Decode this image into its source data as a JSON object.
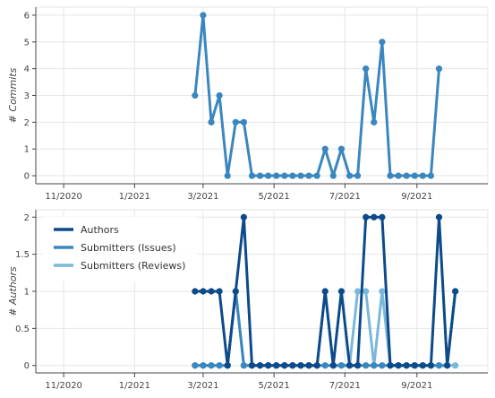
{
  "chart_data": [
    {
      "type": "line",
      "ylabel": "# Commits",
      "ylim": [
        -0.3,
        6.3
      ],
      "yticks": [
        "0",
        "1",
        "2",
        "3",
        "4",
        "5",
        "6"
      ],
      "xticks": [
        "11/2020",
        "1/2021",
        "3/2021",
        "5/2021",
        "7/2021",
        "9/2021"
      ],
      "grid": true,
      "series": [
        {
          "color": "#3a87bf",
          "points": [
            [
              "2021-02-22",
              3
            ],
            [
              "2021-03-01",
              6
            ],
            [
              "2021-03-08",
              2
            ],
            [
              "2021-03-15",
              3
            ],
            [
              "2021-03-22",
              0
            ],
            [
              "2021-03-29",
              2
            ],
            [
              "2021-04-05",
              2
            ],
            [
              "2021-04-12",
              0
            ],
            [
              "2021-04-19",
              0
            ],
            [
              "2021-04-26",
              0
            ],
            [
              "2021-05-03",
              0
            ],
            [
              "2021-05-10",
              0
            ],
            [
              "2021-05-17",
              0
            ],
            [
              "2021-05-24",
              0
            ],
            [
              "2021-05-31",
              0
            ],
            [
              "2021-06-07",
              0
            ],
            [
              "2021-06-14",
              1
            ],
            [
              "2021-06-21",
              0
            ],
            [
              "2021-06-28",
              1
            ],
            [
              "2021-07-05",
              0
            ],
            [
              "2021-07-12",
              0
            ],
            [
              "2021-07-19",
              4
            ],
            [
              "2021-07-26",
              2
            ],
            [
              "2021-08-02",
              5
            ],
            [
              "2021-08-09",
              0
            ],
            [
              "2021-08-16",
              0
            ],
            [
              "2021-08-23",
              0
            ],
            [
              "2021-08-30",
              0
            ],
            [
              "2021-09-06",
              0
            ],
            [
              "2021-09-13",
              0
            ],
            [
              "2021-09-20",
              4
            ]
          ]
        }
      ]
    },
    {
      "type": "line",
      "ylabel": "# Authors",
      "ylim": [
        -0.1,
        2.1
      ],
      "yticks": [
        "0",
        "0.5",
        "1",
        "1.5",
        "2"
      ],
      "ytick_values": [
        0,
        0.5,
        1,
        1.5,
        2
      ],
      "xticks": [
        "11/2020",
        "1/2021",
        "3/2021",
        "5/2021",
        "7/2021",
        "9/2021"
      ],
      "grid": true,
      "legend_position": "top-left",
      "series": [
        {
          "name": "Authors",
          "color": "#0d4a8a",
          "points": [
            [
              "2021-02-22",
              1
            ],
            [
              "2021-03-01",
              1
            ],
            [
              "2021-03-08",
              1
            ],
            [
              "2021-03-15",
              1
            ],
            [
              "2021-03-22",
              0
            ],
            [
              "2021-03-29",
              1
            ],
            [
              "2021-04-05",
              2
            ],
            [
              "2021-04-12",
              0
            ],
            [
              "2021-04-19",
              0
            ],
            [
              "2021-04-26",
              0
            ],
            [
              "2021-05-03",
              0
            ],
            [
              "2021-05-10",
              0
            ],
            [
              "2021-05-17",
              0
            ],
            [
              "2021-05-24",
              0
            ],
            [
              "2021-05-31",
              0
            ],
            [
              "2021-06-07",
              0
            ],
            [
              "2021-06-14",
              1
            ],
            [
              "2021-06-21",
              0
            ],
            [
              "2021-06-28",
              1
            ],
            [
              "2021-07-05",
              0
            ],
            [
              "2021-07-12",
              0
            ],
            [
              "2021-07-19",
              2
            ],
            [
              "2021-07-26",
              2
            ],
            [
              "2021-08-02",
              2
            ],
            [
              "2021-08-09",
              0
            ],
            [
              "2021-08-16",
              0
            ],
            [
              "2021-08-23",
              0
            ],
            [
              "2021-08-30",
              0
            ],
            [
              "2021-09-06",
              0
            ],
            [
              "2021-09-13",
              0
            ],
            [
              "2021-09-20",
              2
            ],
            [
              "2021-09-27",
              0
            ],
            [
              "2021-10-04",
              1
            ]
          ]
        },
        {
          "name": "Submitters (Issues)",
          "color": "#3a87bf",
          "points": [
            [
              "2021-02-22",
              0
            ],
            [
              "2021-03-01",
              0
            ],
            [
              "2021-03-08",
              0
            ],
            [
              "2021-03-15",
              0
            ],
            [
              "2021-03-22",
              0
            ],
            [
              "2021-03-29",
              1
            ],
            [
              "2021-04-05",
              0
            ],
            [
              "2021-04-12",
              0
            ],
            [
              "2021-04-19",
              0
            ],
            [
              "2021-04-26",
              0
            ],
            [
              "2021-05-03",
              0
            ],
            [
              "2021-05-10",
              0
            ],
            [
              "2021-05-17",
              0
            ],
            [
              "2021-05-24",
              0
            ],
            [
              "2021-05-31",
              0
            ],
            [
              "2021-06-07",
              0
            ],
            [
              "2021-06-14",
              0
            ],
            [
              "2021-06-21",
              0
            ],
            [
              "2021-06-28",
              0
            ],
            [
              "2021-07-05",
              0
            ],
            [
              "2021-07-12",
              0
            ],
            [
              "2021-07-19",
              0
            ],
            [
              "2021-07-26",
              0
            ],
            [
              "2021-08-02",
              0
            ],
            [
              "2021-08-09",
              0
            ],
            [
              "2021-08-16",
              0
            ],
            [
              "2021-08-23",
              0
            ],
            [
              "2021-08-30",
              0
            ],
            [
              "2021-09-06",
              0
            ],
            [
              "2021-09-13",
              0
            ],
            [
              "2021-09-20",
              0
            ],
            [
              "2021-09-27",
              0
            ],
            [
              "2021-10-04",
              1
            ]
          ]
        },
        {
          "name": "Submitters (Reviews)",
          "color": "#7ab8d9",
          "points": [
            [
              "2021-02-22",
              0
            ],
            [
              "2021-03-01",
              0
            ],
            [
              "2021-03-08",
              0
            ],
            [
              "2021-03-15",
              0
            ],
            [
              "2021-03-22",
              0
            ],
            [
              "2021-03-29",
              1
            ],
            [
              "2021-04-05",
              0
            ],
            [
              "2021-04-12",
              0
            ],
            [
              "2021-04-19",
              0
            ],
            [
              "2021-04-26",
              0
            ],
            [
              "2021-05-03",
              0
            ],
            [
              "2021-05-10",
              0
            ],
            [
              "2021-05-17",
              0
            ],
            [
              "2021-05-24",
              0
            ],
            [
              "2021-05-31",
              0
            ],
            [
              "2021-06-07",
              0
            ],
            [
              "2021-06-14",
              1
            ],
            [
              "2021-06-21",
              0
            ],
            [
              "2021-06-28",
              0
            ],
            [
              "2021-07-05",
              0
            ],
            [
              "2021-07-12",
              1
            ],
            [
              "2021-07-19",
              1
            ],
            [
              "2021-07-26",
              0
            ],
            [
              "2021-08-02",
              1
            ],
            [
              "2021-08-09",
              0
            ],
            [
              "2021-08-16",
              0
            ],
            [
              "2021-08-23",
              0
            ],
            [
              "2021-08-30",
              0
            ],
            [
              "2021-09-06",
              0
            ],
            [
              "2021-09-13",
              0
            ],
            [
              "2021-09-20",
              0
            ],
            [
              "2021-09-27",
              0
            ],
            [
              "2021-10-04",
              0
            ]
          ]
        }
      ]
    }
  ]
}
